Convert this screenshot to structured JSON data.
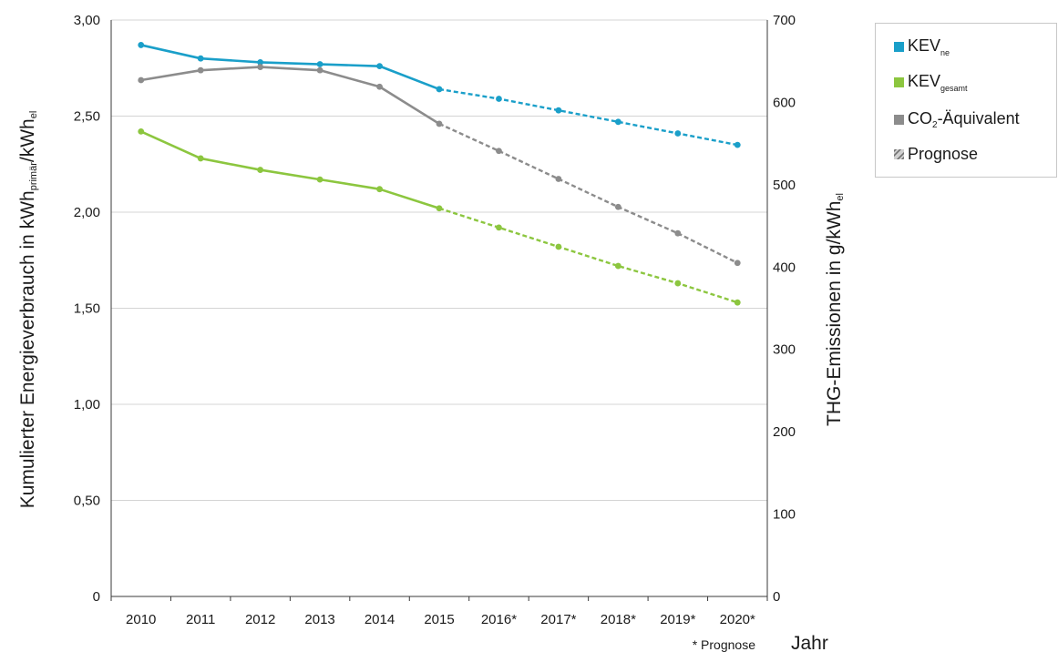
{
  "chart_data": {
    "type": "line",
    "x": [
      "2010",
      "2011",
      "2012",
      "2013",
      "2014",
      "2015",
      "2016*",
      "2017*",
      "2018*",
      "2019*",
      "2020*"
    ],
    "prognosis_from_index": 5,
    "y_left": {
      "label_main": "Kumulierter Energieverbrauch in kWh",
      "label_sub1": "primär",
      "label_mid": "/kWh",
      "label_sub2": "el",
      "ylim": [
        0,
        3.0
      ],
      "ticks": [
        "0",
        "0,50",
        "1,00",
        "1,50",
        "2,00",
        "2,50",
        "3,00"
      ]
    },
    "y_right": {
      "label_main": "THG-Emissionen in g/kWh",
      "label_sub": "el",
      "ylim": [
        0,
        700
      ],
      "ticks": [
        "0",
        "100",
        "200",
        "300",
        "400",
        "500",
        "600",
        "700"
      ]
    },
    "xlabel": "Jahr",
    "note": "* Prognose",
    "grid": true,
    "series": [
      {
        "name": "KEV_ne",
        "axis": "left",
        "color": "#1a9fc9",
        "values": [
          2.87,
          2.8,
          2.78,
          2.77,
          2.76,
          2.64,
          2.59,
          2.53,
          2.47,
          2.41,
          2.35
        ]
      },
      {
        "name": "KEV_gesamt",
        "axis": "left",
        "color": "#8cc63f",
        "values": [
          2.42,
          2.28,
          2.22,
          2.17,
          2.12,
          2.02,
          1.92,
          1.82,
          1.72,
          1.63,
          1.53
        ]
      },
      {
        "name": "CO2-Äquivalent",
        "axis": "right",
        "color": "#8c8c8c",
        "values": [
          627,
          639,
          643,
          639,
          619,
          574,
          541,
          507,
          473,
          441,
          405
        ]
      }
    ]
  },
  "legend": {
    "items": [
      {
        "base": "KEV",
        "sub": "ne",
        "suffix": "",
        "color": "#1a9fc9"
      },
      {
        "base": "KEV",
        "sub": "gesamt",
        "suffix": "",
        "color": "#8cc63f"
      },
      {
        "base": "CO",
        "sub": "2",
        "suffix": "-Äquivalent",
        "color": "#8c8c8c"
      },
      {
        "base": "Prognose",
        "sub": "",
        "suffix": "",
        "color": "#8c8c8c",
        "hatched": true
      }
    ]
  }
}
